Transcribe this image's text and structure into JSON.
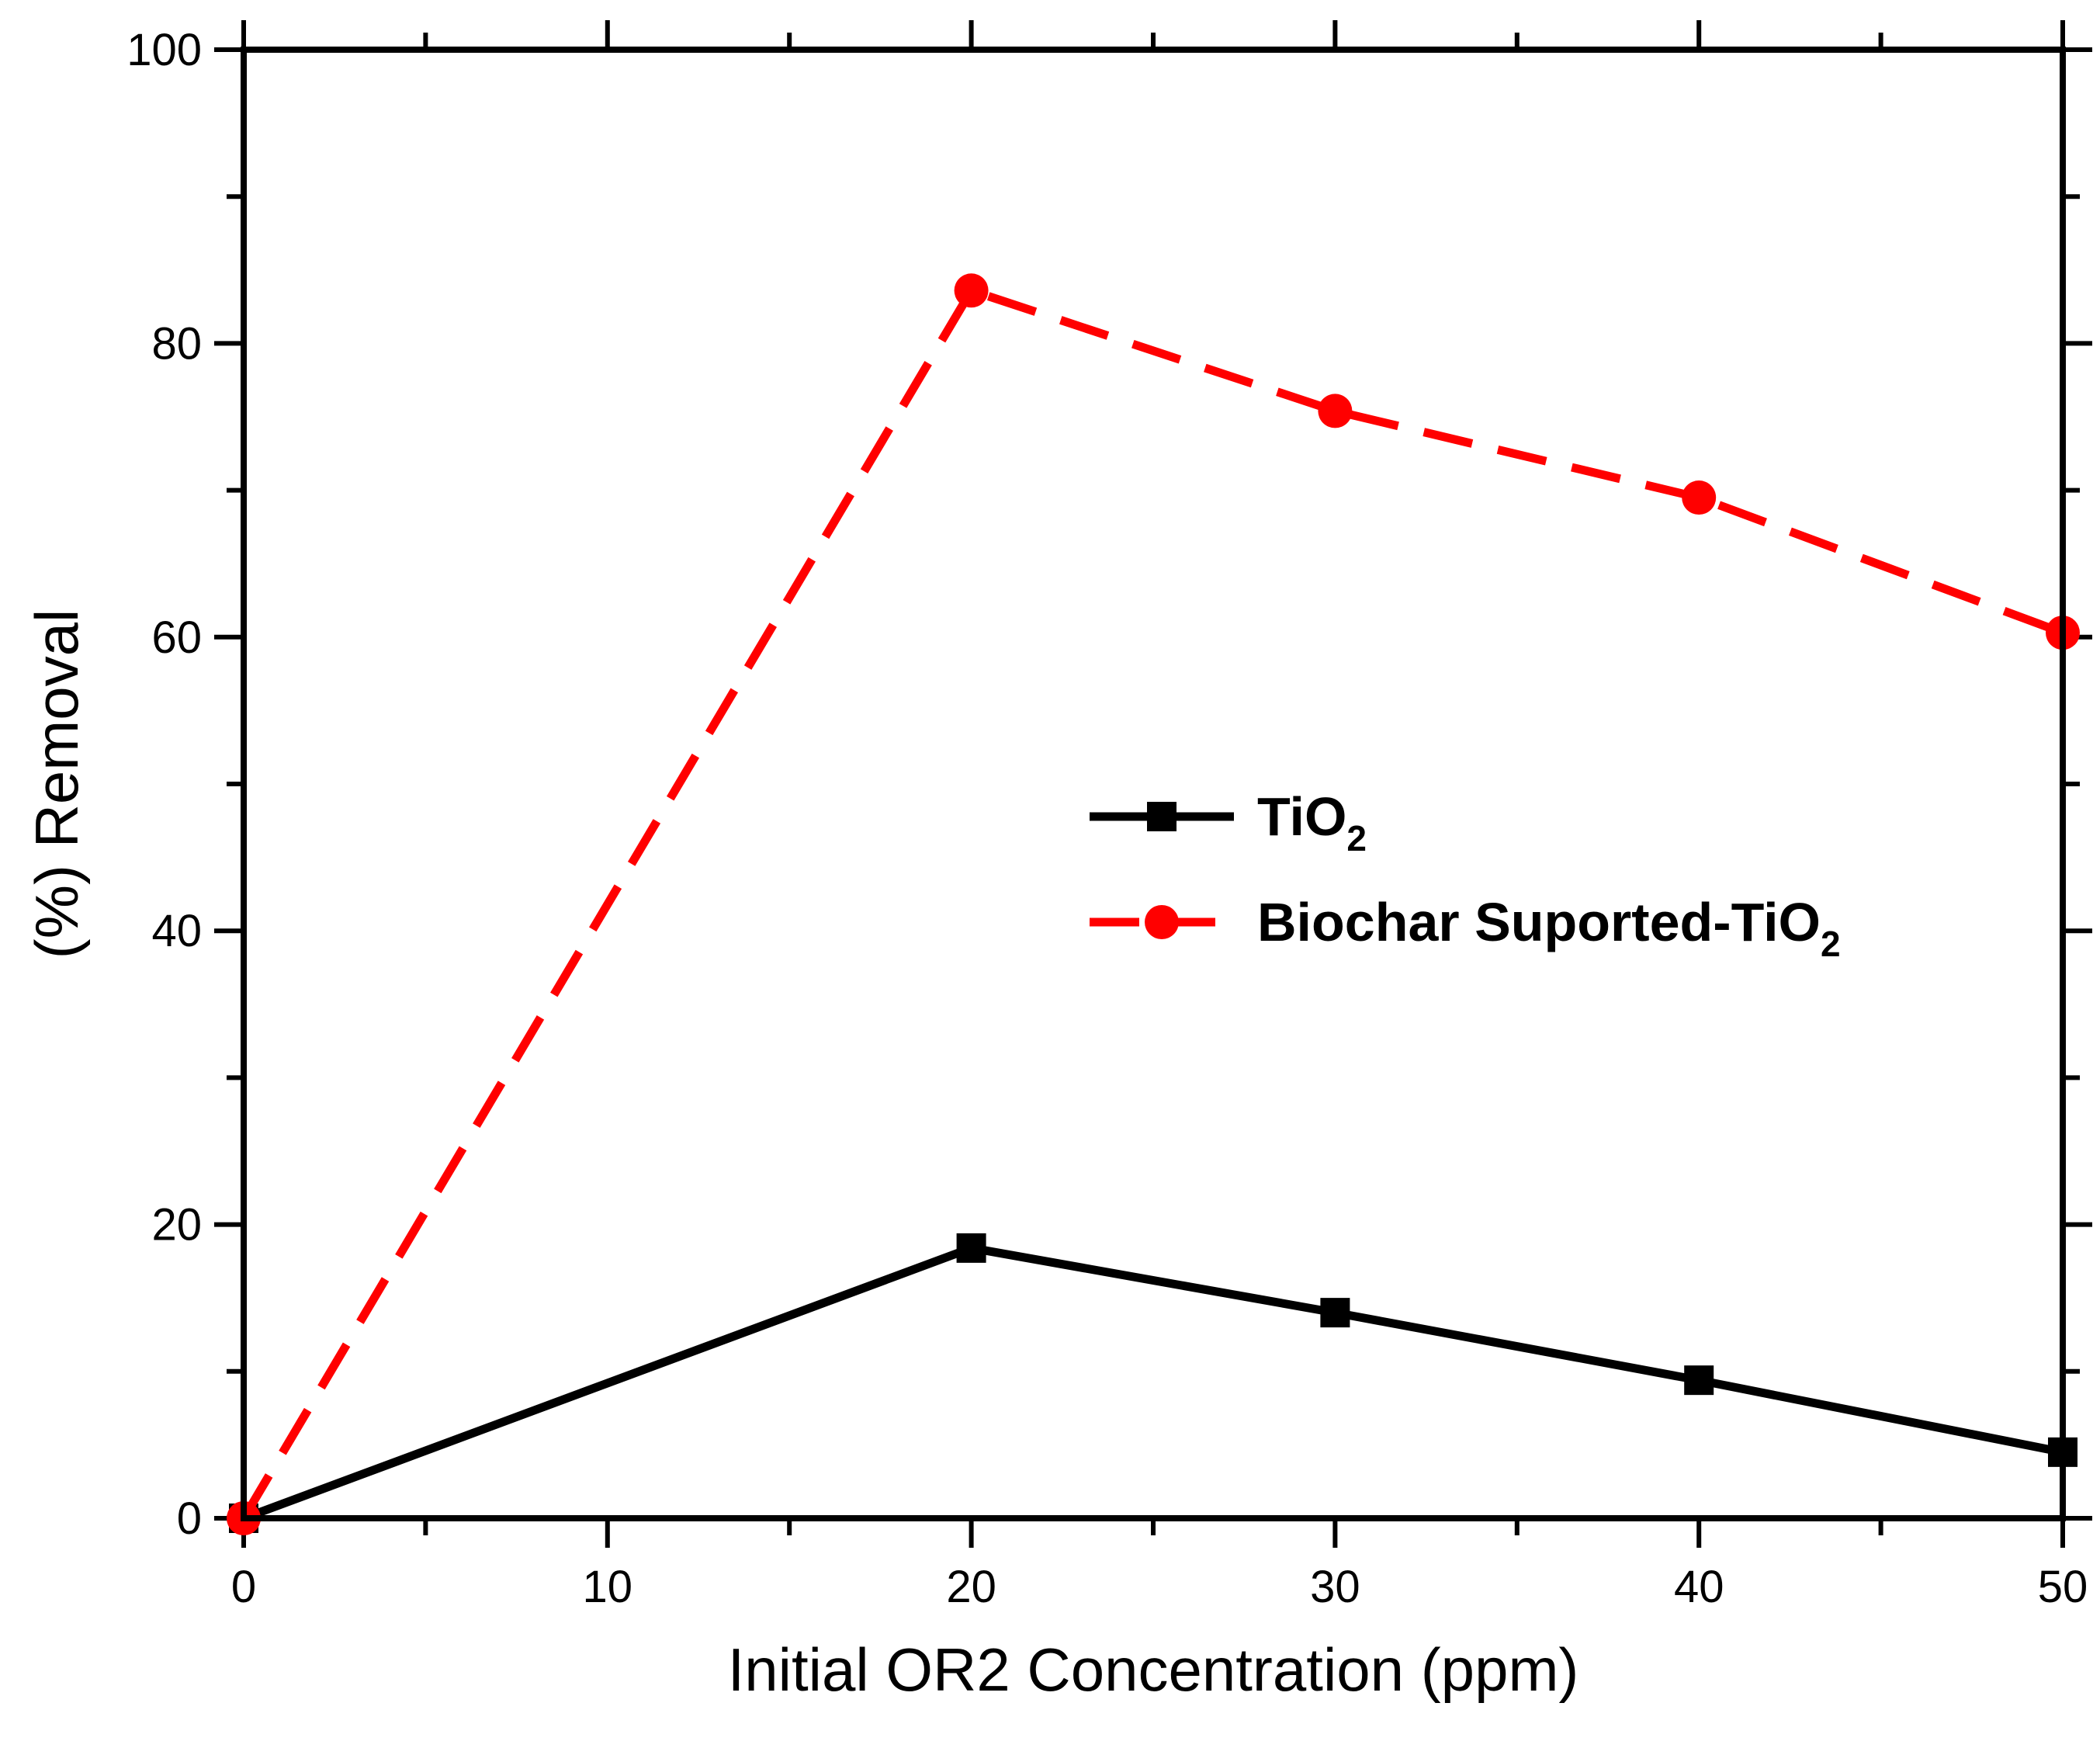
{
  "chart_data": {
    "type": "line",
    "title": "",
    "xlabel": "Initial OR2 Concentration (ppm)",
    "ylabel": "(%) Removal",
    "xlim": [
      0,
      50
    ],
    "ylim": [
      0,
      100
    ],
    "x_major_ticks": [
      0,
      10,
      20,
      30,
      40,
      50
    ],
    "x_tick_labels": [
      "0",
      "10",
      "20",
      "30",
      "40",
      "50"
    ],
    "y_major_ticks": [
      0,
      20,
      40,
      60,
      80,
      100
    ],
    "y_tick_labels": [
      "0",
      "20",
      "40",
      "60",
      "80",
      "100"
    ],
    "grid": false,
    "legend_position": "center-right",
    "series": [
      {
        "name": "TiO2",
        "label_main": "TiO",
        "label_sub": "2",
        "color": "#000000",
        "line_style": "solid",
        "marker": "square",
        "x": [
          0,
          20,
          30,
          40,
          50
        ],
        "y": [
          0,
          18.4,
          14.0,
          9.4,
          4.5
        ]
      },
      {
        "name": "Biochar Suported-TiO2",
        "label_main": "Biochar Suported-TiO",
        "label_sub": "2",
        "color": "#ff0000",
        "line_style": "dashed",
        "marker": "circle",
        "x": [
          0,
          20,
          30,
          40,
          50
        ],
        "y": [
          0,
          83.6,
          75.4,
          69.5,
          60.3
        ]
      }
    ]
  }
}
